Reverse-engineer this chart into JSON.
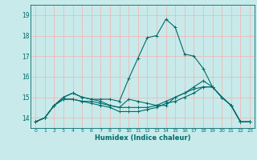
{
  "title": "",
  "xlabel": "Humidex (Indice chaleur)",
  "ylabel": "",
  "background_color": "#c8eaea",
  "grid_color": "#f0b8b8",
  "line_color": "#006b6b",
  "ylim": [
    13.5,
    19.5
  ],
  "xlim": [
    -0.5,
    23.5
  ],
  "yticks": [
    14,
    15,
    16,
    17,
    18,
    19
  ],
  "xticks": [
    0,
    1,
    2,
    3,
    4,
    5,
    6,
    7,
    8,
    9,
    10,
    11,
    12,
    13,
    14,
    15,
    16,
    17,
    18,
    19,
    20,
    21,
    22,
    23
  ],
  "series": [
    [
      13.8,
      14.0,
      14.6,
      15.0,
      15.2,
      15.0,
      14.9,
      14.9,
      14.9,
      14.8,
      15.9,
      16.9,
      17.9,
      18.0,
      18.8,
      18.4,
      17.1,
      17.0,
      16.4,
      15.5,
      15.0,
      14.6,
      13.8,
      13.8
    ],
    [
      13.8,
      14.0,
      14.6,
      15.0,
      15.2,
      15.0,
      14.9,
      14.8,
      14.6,
      14.5,
      14.9,
      14.8,
      14.7,
      14.6,
      14.6,
      15.0,
      15.2,
      15.5,
      15.8,
      15.5,
      15.0,
      14.6,
      13.8,
      13.8
    ],
    [
      13.8,
      14.0,
      14.6,
      14.9,
      14.9,
      14.8,
      14.8,
      14.7,
      14.6,
      14.5,
      14.5,
      14.5,
      14.5,
      14.6,
      14.8,
      15.0,
      15.2,
      15.4,
      15.5,
      15.5,
      15.0,
      14.6,
      13.8,
      13.8
    ],
    [
      13.8,
      14.0,
      14.6,
      14.9,
      14.9,
      14.8,
      14.7,
      14.6,
      14.5,
      14.3,
      14.3,
      14.3,
      14.4,
      14.5,
      14.7,
      14.8,
      15.0,
      15.2,
      15.5,
      15.5,
      15.0,
      14.6,
      13.8,
      13.8
    ]
  ],
  "figwidth": 3.2,
  "figheight": 2.0,
  "dpi": 100
}
